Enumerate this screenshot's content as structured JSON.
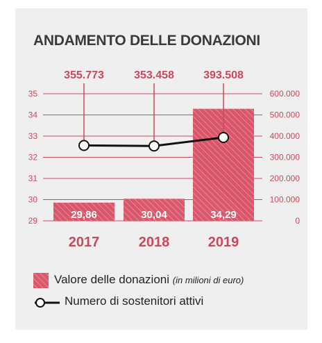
{
  "title": "ANDAMENTO DELLE DONAZIONI",
  "colors": {
    "accent": "#c8485d",
    "bar_fill": "#d9566b",
    "bar_hatch": "#e88a99",
    "line": "#111111",
    "grid": "#c8485d",
    "card": "#efefef"
  },
  "legend": {
    "bars_label": "Valore delle donazioni",
    "bars_unit": "(in milioni di euro)",
    "line_label": "Numero di sostenitori attivi"
  },
  "chart_data": {
    "type": "bar",
    "categories": [
      "2017",
      "2018",
      "2019"
    ],
    "grid": true,
    "series": [
      {
        "name": "Valore delle donazioni",
        "type": "bar",
        "axis": "left",
        "values": [
          29.86,
          30.04,
          34.29
        ],
        "labels": [
          "29,86",
          "30,04",
          "34,29"
        ]
      },
      {
        "name": "Numero di sostenitori attivi",
        "type": "line",
        "axis": "right",
        "values": [
          355773,
          353458,
          393508
        ],
        "labels": [
          "355.773",
          "353.458",
          "393.508"
        ]
      }
    ],
    "y_left": {
      "ylim": [
        29,
        35
      ],
      "ticks": [
        "29",
        "30",
        "31",
        "32",
        "33",
        "34",
        "35"
      ]
    },
    "y_right": {
      "ylim": [
        0,
        600000
      ],
      "ticks": [
        "0",
        "100.000",
        "200.000",
        "300.000",
        "400.000",
        "500.000",
        "600.000"
      ]
    }
  }
}
